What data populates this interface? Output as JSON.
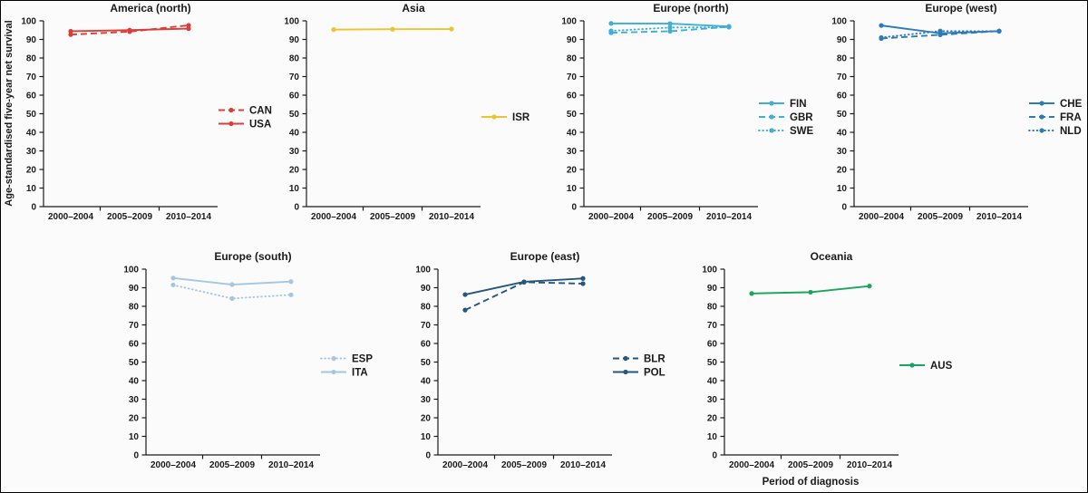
{
  "figure": {
    "ylabel": "Age-standardised five-year net survival",
    "xlabel": "Period of diagnosis"
  },
  "chart_data": [
    {
      "type": "line",
      "title": "America (north)",
      "categories": [
        "2000–2004",
        "2005–2009",
        "2010–2014"
      ],
      "ylim": [
        0,
        100
      ],
      "ytick_step": 10,
      "grid": false,
      "legend_position": "right",
      "color": "#d93f38",
      "series": [
        {
          "name": "CAN",
          "style": "dashed",
          "values": [
            92.6,
            94.2,
            97.6
          ]
        },
        {
          "name": "USA",
          "style": "solid",
          "values": [
            94.4,
            95.0,
            95.8
          ]
        }
      ]
    },
    {
      "type": "line",
      "title": "Asia",
      "categories": [
        "2000–2004",
        "2005–2009",
        "2010–2014"
      ],
      "ylim": [
        0,
        100
      ],
      "ytick_step": 10,
      "grid": false,
      "legend_position": "right",
      "color": "#eec32f",
      "series": [
        {
          "name": "ISR",
          "style": "solid",
          "values": [
            95.3,
            95.5,
            95.6
          ]
        }
      ]
    },
    {
      "type": "line",
      "title": "Europe (north)",
      "categories": [
        "2000–2004",
        "2005–2009",
        "2010–2014"
      ],
      "ylim": [
        0,
        100
      ],
      "ytick_step": 10,
      "grid": false,
      "legend_position": "right",
      "color": "#3fafd6",
      "series": [
        {
          "name": "FIN",
          "style": "solid",
          "values": [
            98.6,
            98.5,
            97.0
          ]
        },
        {
          "name": "GBR",
          "style": "dashed",
          "values": [
            93.6,
            94.4,
            96.8
          ]
        },
        {
          "name": "SWE",
          "style": "dotted",
          "values": [
            94.6,
            96.4,
            96.6
          ]
        }
      ]
    },
    {
      "type": "line",
      "title": "Europe (west)",
      "categories": [
        "2000–2004",
        "2005–2009",
        "2010–2014"
      ],
      "ylim": [
        0,
        100
      ],
      "ytick_step": 10,
      "grid": false,
      "legend_position": "right",
      "color": "#2d7cb7",
      "series": [
        {
          "name": "CHE",
          "style": "solid",
          "values": [
            97.5,
            93.3,
            94.5
          ]
        },
        {
          "name": "FRA",
          "style": "dashed",
          "values": [
            90.5,
            92.5,
            94.5
          ]
        },
        {
          "name": "NLD",
          "style": "dotted",
          "values": [
            91.0,
            94.5,
            94.4
          ]
        }
      ]
    },
    {
      "type": "line",
      "title": "Europe (south)",
      "categories": [
        "2000–2004",
        "2005–2009",
        "2010–2014"
      ],
      "ylim": [
        0,
        100
      ],
      "ytick_step": 10,
      "grid": false,
      "legend_position": "right",
      "color": "#a5c6e2",
      "series": [
        {
          "name": "ESP",
          "style": "dotted",
          "values": [
            91.5,
            84.2,
            86.2
          ]
        },
        {
          "name": "ITA",
          "style": "solid",
          "values": [
            95.2,
            91.7,
            93.3
          ]
        }
      ]
    },
    {
      "type": "line",
      "title": "Europe (east)",
      "categories": [
        "2000–2004",
        "2005–2009",
        "2010–2014"
      ],
      "ylim": [
        0,
        100
      ],
      "ytick_step": 10,
      "grid": false,
      "legend_position": "right",
      "color": "#24567e",
      "series": [
        {
          "name": "BLR",
          "style": "dashed",
          "values": [
            78.0,
            93.0,
            92.2
          ]
        },
        {
          "name": "POL",
          "style": "solid",
          "values": [
            86.3,
            93.2,
            95.0
          ]
        }
      ]
    },
    {
      "type": "line",
      "title": "Oceania",
      "categories": [
        "2000–2004",
        "2005–2009",
        "2010–2014"
      ],
      "ylim": [
        0,
        100
      ],
      "ytick_step": 10,
      "grid": false,
      "legend_position": "right",
      "color": "#18a65a",
      "series": [
        {
          "name": "AUS",
          "style": "solid",
          "values": [
            86.9,
            87.6,
            90.9
          ]
        }
      ]
    }
  ]
}
